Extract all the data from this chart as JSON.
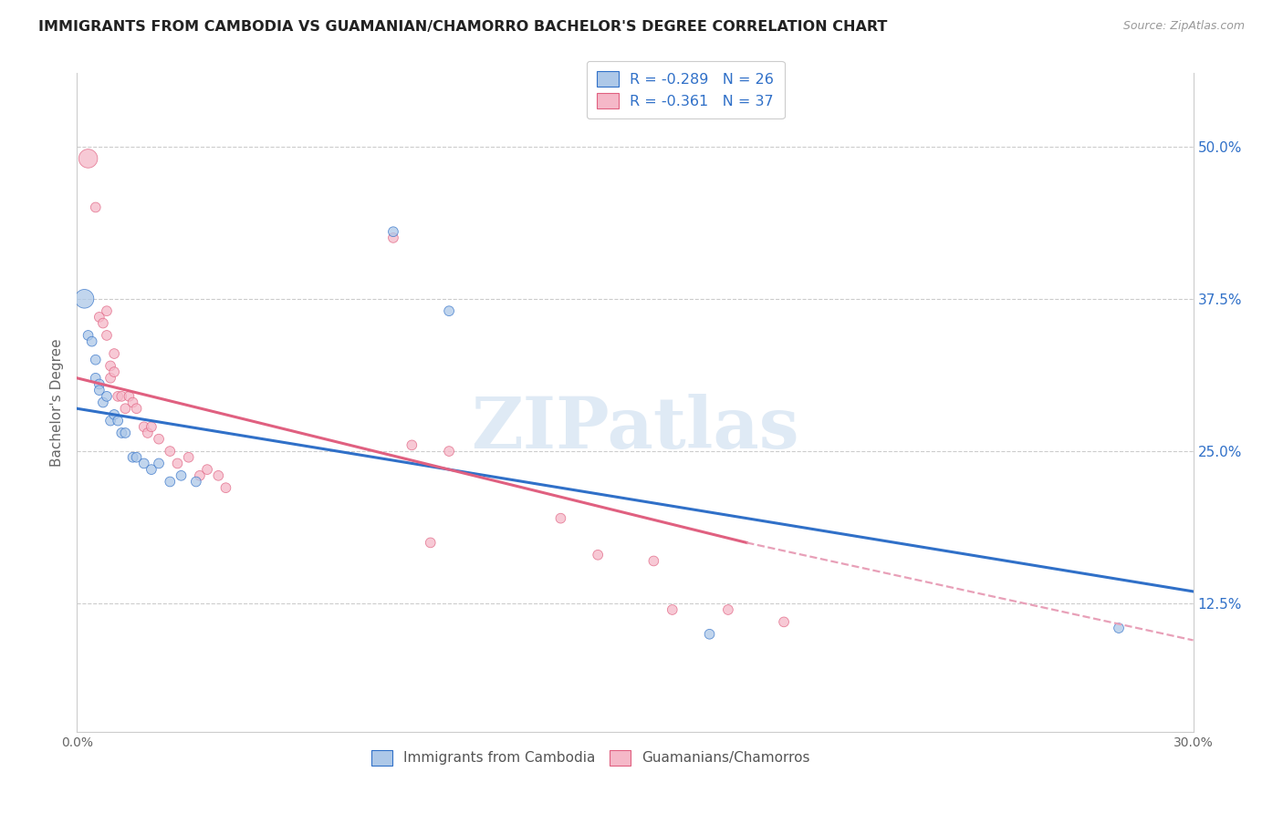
{
  "title": "IMMIGRANTS FROM CAMBODIA VS GUAMANIAN/CHAMORRO BACHELOR'S DEGREE CORRELATION CHART",
  "source": "Source: ZipAtlas.com",
  "ylabel": "Bachelor's Degree",
  "ytick_labels": [
    "50.0%",
    "37.5%",
    "25.0%",
    "12.5%"
  ],
  "ytick_values": [
    0.5,
    0.375,
    0.25,
    0.125
  ],
  "xmin": 0.0,
  "xmax": 0.3,
  "ymin": 0.02,
  "ymax": 0.56,
  "legend_r_blue": "R = -0.289",
  "legend_n_blue": "N = 26",
  "legend_r_pink": "R = -0.361",
  "legend_n_pink": "N = 37",
  "legend_label_blue": "Immigrants from Cambodia",
  "legend_label_pink": "Guamanians/Chamorros",
  "color_blue": "#adc8e8",
  "color_pink": "#f5b8c8",
  "line_color_blue": "#3070c8",
  "line_color_pink": "#e06080",
  "watermark": "ZIPatlas",
  "blue_points": [
    [
      0.002,
      0.375
    ],
    [
      0.003,
      0.345
    ],
    [
      0.004,
      0.34
    ],
    [
      0.005,
      0.325
    ],
    [
      0.005,
      0.31
    ],
    [
      0.006,
      0.305
    ],
    [
      0.006,
      0.3
    ],
    [
      0.007,
      0.29
    ],
    [
      0.008,
      0.295
    ],
    [
      0.009,
      0.275
    ],
    [
      0.01,
      0.28
    ],
    [
      0.011,
      0.275
    ],
    [
      0.012,
      0.265
    ],
    [
      0.013,
      0.265
    ],
    [
      0.015,
      0.245
    ],
    [
      0.016,
      0.245
    ],
    [
      0.018,
      0.24
    ],
    [
      0.02,
      0.235
    ],
    [
      0.022,
      0.24
    ],
    [
      0.025,
      0.225
    ],
    [
      0.028,
      0.23
    ],
    [
      0.032,
      0.225
    ],
    [
      0.085,
      0.43
    ],
    [
      0.1,
      0.365
    ],
    [
      0.17,
      0.1
    ],
    [
      0.28,
      0.105
    ]
  ],
  "blue_sizes": [
    220,
    60,
    60,
    60,
    60,
    60,
    60,
    60,
    60,
    60,
    60,
    60,
    60,
    60,
    60,
    60,
    60,
    60,
    60,
    60,
    60,
    60,
    60,
    60,
    60,
    60
  ],
  "pink_points": [
    [
      0.003,
      0.49
    ],
    [
      0.005,
      0.45
    ],
    [
      0.006,
      0.36
    ],
    [
      0.007,
      0.355
    ],
    [
      0.008,
      0.365
    ],
    [
      0.008,
      0.345
    ],
    [
      0.009,
      0.32
    ],
    [
      0.009,
      0.31
    ],
    [
      0.01,
      0.33
    ],
    [
      0.01,
      0.315
    ],
    [
      0.011,
      0.295
    ],
    [
      0.012,
      0.295
    ],
    [
      0.013,
      0.285
    ],
    [
      0.014,
      0.295
    ],
    [
      0.015,
      0.29
    ],
    [
      0.016,
      0.285
    ],
    [
      0.018,
      0.27
    ],
    [
      0.019,
      0.265
    ],
    [
      0.02,
      0.27
    ],
    [
      0.022,
      0.26
    ],
    [
      0.025,
      0.25
    ],
    [
      0.027,
      0.24
    ],
    [
      0.03,
      0.245
    ],
    [
      0.033,
      0.23
    ],
    [
      0.035,
      0.235
    ],
    [
      0.038,
      0.23
    ],
    [
      0.04,
      0.22
    ],
    [
      0.085,
      0.425
    ],
    [
      0.09,
      0.255
    ],
    [
      0.1,
      0.25
    ],
    [
      0.095,
      0.175
    ],
    [
      0.13,
      0.195
    ],
    [
      0.14,
      0.165
    ],
    [
      0.155,
      0.16
    ],
    [
      0.16,
      0.12
    ],
    [
      0.175,
      0.12
    ],
    [
      0.19,
      0.11
    ]
  ],
  "pink_sizes": [
    220,
    60,
    60,
    60,
    60,
    60,
    60,
    60,
    60,
    60,
    60,
    60,
    60,
    60,
    60,
    60,
    60,
    60,
    60,
    60,
    60,
    60,
    60,
    60,
    60,
    60,
    60,
    60,
    60,
    60,
    60,
    60,
    60,
    60,
    60,
    60,
    60
  ],
  "blue_line": [
    [
      0.0,
      0.285
    ],
    [
      0.3,
      0.135
    ]
  ],
  "pink_line_solid": [
    [
      0.0,
      0.31
    ],
    [
      0.18,
      0.175
    ]
  ],
  "pink_line_dash": [
    [
      0.18,
      0.175
    ],
    [
      0.3,
      0.095
    ]
  ]
}
